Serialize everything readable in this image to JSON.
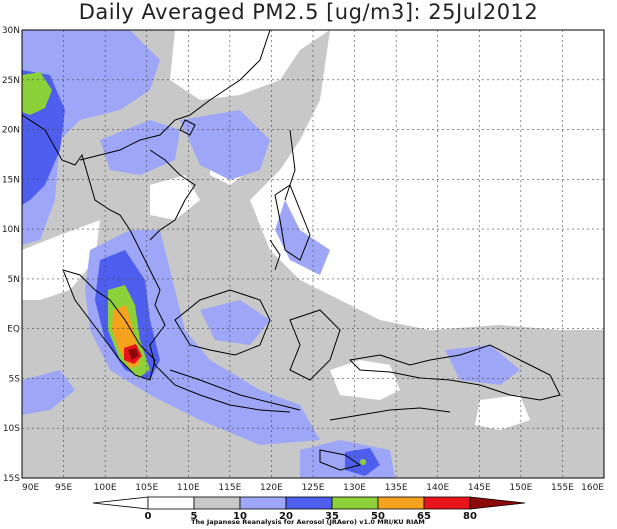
{
  "title": "Daily Averaged PM2.5 [ug/m3]: 25Jul2012",
  "lon_labels": [
    "90E",
    "95E",
    "100E",
    "105E",
    "110E",
    "115E",
    "120E",
    "125E",
    "130E",
    "135E",
    "140E",
    "145E",
    "150E",
    "155E",
    "160E"
  ],
  "lat_labels": [
    "30N",
    "25N",
    "20N",
    "15N",
    "10N",
    "5N",
    "EQ",
    "5S",
    "10S",
    "15S"
  ],
  "colorbar": {
    "levels": [
      "0",
      "5",
      "10",
      "20",
      "35",
      "50",
      "65",
      "80"
    ],
    "colors": {
      "white": "#ffffff",
      "gray": "#c8c8c8",
      "light_blue": "#9ea6f7",
      "blue": "#4e5ff0",
      "green": "#8cd03a",
      "orange": "#f5a31e",
      "red": "#e8141c",
      "dark_red": "#8c0a0a"
    }
  },
  "credit": "The Japanese Reanalysis for Aerosol (JRAero) v1.0 MRI/KU RIAM"
}
